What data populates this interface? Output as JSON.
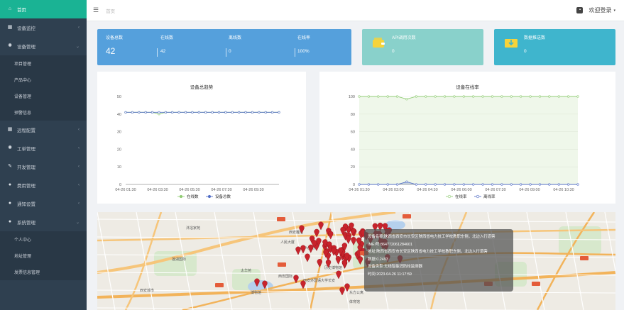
{
  "sidebar": {
    "items": [
      {
        "label": "首页",
        "icon": "home-icon",
        "active": true
      },
      {
        "label": "设备监控",
        "icon": "grid-icon",
        "chevron": true
      },
      {
        "label": "设备管理",
        "icon": "gear-icon",
        "chevron": true,
        "expanded": true,
        "children": [
          "项目管理",
          "产品中心",
          "设备管理",
          "预警信息"
        ]
      },
      {
        "label": "远程配置",
        "icon": "grid-icon",
        "chevron": true
      },
      {
        "label": "工单管理",
        "icon": "gear-icon",
        "chevron": true
      },
      {
        "label": "开发管理",
        "icon": "edit-icon",
        "chevron": true
      },
      {
        "label": "费用管理",
        "icon": "user-icon",
        "chevron": true
      },
      {
        "label": "通知设置",
        "icon": "user-icon",
        "chevron": true
      },
      {
        "label": "系统管理",
        "icon": "user-icon",
        "chevron": true,
        "expanded": true,
        "children": [
          "个人中心",
          "地址管理",
          "发票信息管理"
        ]
      }
    ]
  },
  "header": {
    "breadcrumb": "首页",
    "user_label": "欢迎登录"
  },
  "stats": {
    "total_label": "设备总数",
    "total_value": "42",
    "online_label": "在线数",
    "online_value": "42",
    "offline_label": "离线数",
    "offline_value": "0",
    "rate_label": "在线率",
    "rate_value": "100%",
    "api_label": "API调用次数",
    "api_value": "0",
    "push_label": "数据推送数",
    "push_value": "0"
  },
  "colors": {
    "sidebar_bg": "#2f4050",
    "active": "#1ab394",
    "card_blue": "#55a0dc",
    "card_teal_light": "#89d1cb",
    "card_teal": "#3fb5cd",
    "series_green": "#91cc75",
    "series_blue": "#5470c6"
  },
  "chart_data": [
    {
      "type": "line",
      "title": "设备总趋势",
      "ylim": [
        0,
        50
      ],
      "yticks": [
        "0",
        "10",
        "20",
        "30",
        "40",
        "50"
      ],
      "xticks": [
        "04-26 01:30",
        "04-26 03:30",
        "04-26 05:30",
        "04-26 07:30",
        "04-26 09:30"
      ],
      "points": 24,
      "series": [
        {
          "name": "在线数",
          "values": [
            41,
            41,
            41,
            41,
            41,
            40,
            41,
            41,
            41,
            41,
            41,
            41,
            41,
            41,
            41,
            41,
            41,
            41,
            41,
            41,
            41,
            41,
            41,
            41
          ]
        },
        {
          "name": "设备总数",
          "values": [
            41,
            41,
            41,
            41,
            41,
            41,
            41,
            41,
            41,
            41,
            41,
            41,
            41,
            41,
            41,
            41,
            41,
            41,
            41,
            41,
            41,
            41,
            41,
            41
          ]
        }
      ],
      "legend": "bottom"
    },
    {
      "type": "area",
      "title": "设备在线率",
      "ylim": [
        0,
        100
      ],
      "yticks": [
        "0",
        "20",
        "40",
        "60",
        "80",
        "100"
      ],
      "xticks": [
        "04-26 01:30",
        "04-26 03:00",
        "04-26 04:30",
        "04-26 06:00",
        "04-26 07:30",
        "04-26 09:00",
        "04-26 10:30"
      ],
      "points": 24,
      "series": [
        {
          "name": "在线率",
          "values": [
            100,
            100,
            100,
            100,
            100,
            97,
            100,
            100,
            100,
            100,
            100,
            100,
            100,
            100,
            100,
            100,
            100,
            100,
            100,
            100,
            100,
            100,
            100,
            100
          ]
        },
        {
          "name": "离线率",
          "values": [
            0,
            0,
            0,
            0,
            0,
            3,
            0,
            0,
            0,
            0,
            0,
            0,
            0,
            0,
            0,
            0,
            0,
            0,
            0,
            0,
            0,
            0,
            0,
            0
          ]
        }
      ],
      "legend": "bottom"
    }
  ],
  "map": {
    "labels": [
      "沐浴家苑",
      "人民大厦",
      "西安雁塔",
      "中心医院",
      "莲湖国际",
      "太华苑",
      "西安国际",
      "博物馆",
      "西安外国语大学长安",
      "体育馆",
      "东方公寓",
      "西安城市",
      "历史博物馆"
    ],
    "tooltip": {
      "line1": "设备名称:陕西省西安市长安区陕西省电力技工学校教职东侧，北边入行道旁",
      "line2": "IMEI号:864772061284601",
      "line3": "地址:陕西省西安市长安区陕西省电力技工学校教职东侧，北边入行道旁",
      "line4": "数据:0.2493",
      "line5": "设备类型:无线智能消防栓监测器",
      "line6": "时间:2023-04-26 11:17:59"
    }
  }
}
